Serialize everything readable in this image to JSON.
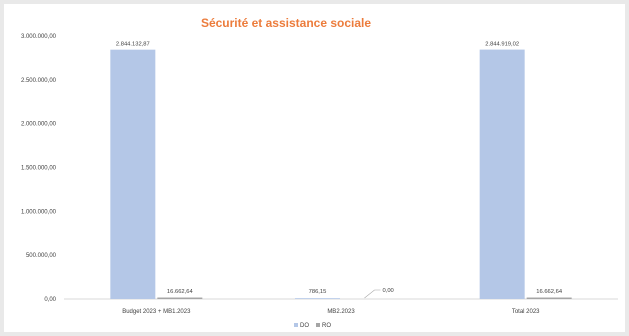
{
  "chart_data": {
    "type": "bar",
    "title": "Sécurité et assistance sociale",
    "categories": [
      "Budget 2023 + MB1.2023",
      "MB2.2023",
      "Total 2023"
    ],
    "series": [
      {
        "name": "DO",
        "values": [
          2844132.87,
          786.15,
          2844919.02
        ],
        "labels": [
          "2.844.132,87",
          "786,15",
          "2.844.919,02"
        ],
        "color": "#b4c7e7"
      },
      {
        "name": "RO",
        "values": [
          16662.64,
          0,
          16662.64
        ],
        "labels": [
          "16.662,64",
          "0,00",
          "16.662,64"
        ],
        "color": "#a5a5a5"
      }
    ],
    "ylim": [
      0,
      3000000
    ],
    "yticks": [
      0,
      500000,
      1000000,
      1500000,
      2000000,
      2500000,
      3000000
    ],
    "ytick_labels": [
      "0,00",
      "500.000,00",
      "1.000.000,00",
      "1.500.000,00",
      "2.000.000,00",
      "2.500.000,00",
      "3.000.000,00"
    ],
    "grid": false,
    "legend_position": "bottom-center"
  }
}
